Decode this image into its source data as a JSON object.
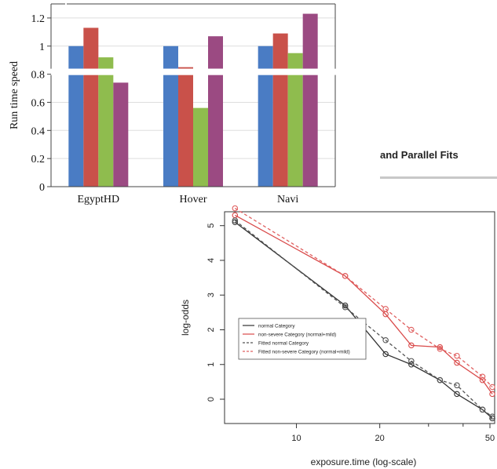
{
  "fragment": {
    "title": "and Parallel Fits"
  },
  "chart_data": [
    {
      "type": "bar",
      "ylabel": "Run time speed",
      "categories": [
        "EgyptHD",
        "Hover",
        "Navi"
      ],
      "series": [
        {
          "values": [
            1.0,
            1.0,
            1.0
          ],
          "color": "#4a7cc4"
        },
        {
          "values": [
            1.13,
            0.85,
            1.09
          ],
          "color": "#c9514a"
        },
        {
          "values": [
            0.92,
            0.56,
            0.95
          ],
          "color": "#8fbc4e"
        },
        {
          "values": [
            0.74,
            1.07,
            1.23
          ],
          "color": "#9b4a82"
        }
      ],
      "ylim": [
        0,
        1.3
      ],
      "yticks": [
        "0",
        "0.2",
        "0.4",
        "0.6",
        "0.8",
        "1",
        "1.2"
      ],
      "axis_break_at": 0.8,
      "grid": true
    },
    {
      "type": "line",
      "xlabel": "exposure.time (log-scale)",
      "ylabel": "log-odds",
      "xscale": "log",
      "xlim": [
        5.5,
        52
      ],
      "ylim": [
        -0.7,
        5.4
      ],
      "xticks": [
        "10",
        "20",
        "50"
      ],
      "yticks": [
        "0",
        "1",
        "2",
        "3",
        "4",
        "5"
      ],
      "legend_position": "center-left",
      "series": [
        {
          "name": "normal Category",
          "color": "#333333",
          "dash": "solid",
          "points": [
            [
              6,
              5.1
            ],
            [
              15,
              2.7
            ],
            [
              21,
              1.3
            ],
            [
              26,
              1.0
            ],
            [
              33,
              0.55
            ],
            [
              38,
              0.15
            ],
            [
              47,
              -0.3
            ],
            [
              51,
              -0.55
            ]
          ]
        },
        {
          "name": "non-severe Category (normal+mild)",
          "color": "#d94a4a",
          "dash": "solid",
          "points": [
            [
              6,
              5.3
            ],
            [
              15,
              3.55
            ],
            [
              21,
              2.45
            ],
            [
              26,
              1.55
            ],
            [
              33,
              1.5
            ],
            [
              38,
              1.05
            ],
            [
              47,
              0.55
            ],
            [
              51,
              0.15
            ]
          ]
        },
        {
          "name": "Fitted normal Category",
          "color": "#555555",
          "dash": "dashed",
          "points": [
            [
              6,
              5.15
            ],
            [
              15,
              2.65
            ],
            [
              21,
              1.7
            ],
            [
              26,
              1.1
            ],
            [
              33,
              0.55
            ],
            [
              38,
              0.4
            ],
            [
              47,
              -0.3
            ],
            [
              51,
              -0.5
            ]
          ]
        },
        {
          "name": "Fitted non-severe Category (normal+mild)",
          "color": "#e06060",
          "dash": "dashed",
          "points": [
            [
              6,
              5.5
            ],
            [
              15,
              3.55
            ],
            [
              21,
              2.6
            ],
            [
              26,
              2.0
            ],
            [
              33,
              1.45
            ],
            [
              38,
              1.25
            ],
            [
              47,
              0.65
            ],
            [
              51,
              0.35
            ]
          ]
        }
      ]
    }
  ]
}
